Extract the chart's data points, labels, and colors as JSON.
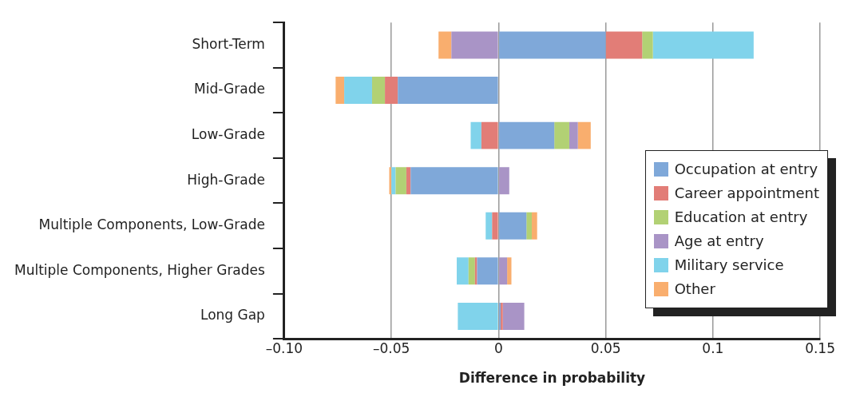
{
  "chart_data": {
    "type": "bar",
    "orientation": "horizontal",
    "stacked": true,
    "categories": [
      "Short-Term",
      "Mid-Grade",
      "Low-Grade",
      "High-Grade",
      "Multiple Components, Low-Grade",
      "Multiple Components, Higher Grades",
      "Long Gap"
    ],
    "series": [
      {
        "name": "Occupation at entry",
        "color": "#7fa8d9",
        "values": [
          0.05,
          -0.047,
          0.026,
          -0.041,
          0.013,
          -0.01,
          0.001
        ]
      },
      {
        "name": "Career appointment",
        "color": "#e27d77",
        "values": [
          0.017,
          -0.006,
          -0.008,
          -0.002,
          -0.003,
          -0.001,
          0.001
        ]
      },
      {
        "name": "Education at entry",
        "color": "#b2d174",
        "values": [
          0.005,
          -0.006,
          0.007,
          -0.005,
          0.0025,
          -0.003,
          null
        ]
      },
      {
        "name": "Age at entry",
        "color": "#a994c6",
        "values": [
          -0.022,
          null,
          0.004,
          0.005,
          null,
          0.004,
          0.01
        ]
      },
      {
        "name": "Military service",
        "color": "#80d3eb",
        "values": [
          0.047,
          -0.013,
          -0.005,
          -0.002,
          -0.003,
          -0.0055,
          -0.019
        ]
      },
      {
        "name": "Other",
        "color": "#f9ae6e",
        "values": [
          -0.006,
          -0.004,
          0.006,
          -0.001,
          0.0025,
          0.002,
          null
        ]
      }
    ],
    "xlim": [
      -0.1,
      0.15
    ],
    "xticks": [
      {
        "value": -0.1,
        "label": "–0.10"
      },
      {
        "value": -0.05,
        "label": "–0.05"
      },
      0,
      0.05,
      0.1,
      0.15
    ],
    "xlabel": "Difference in probability",
    "grid": "x",
    "legend": "right"
  }
}
